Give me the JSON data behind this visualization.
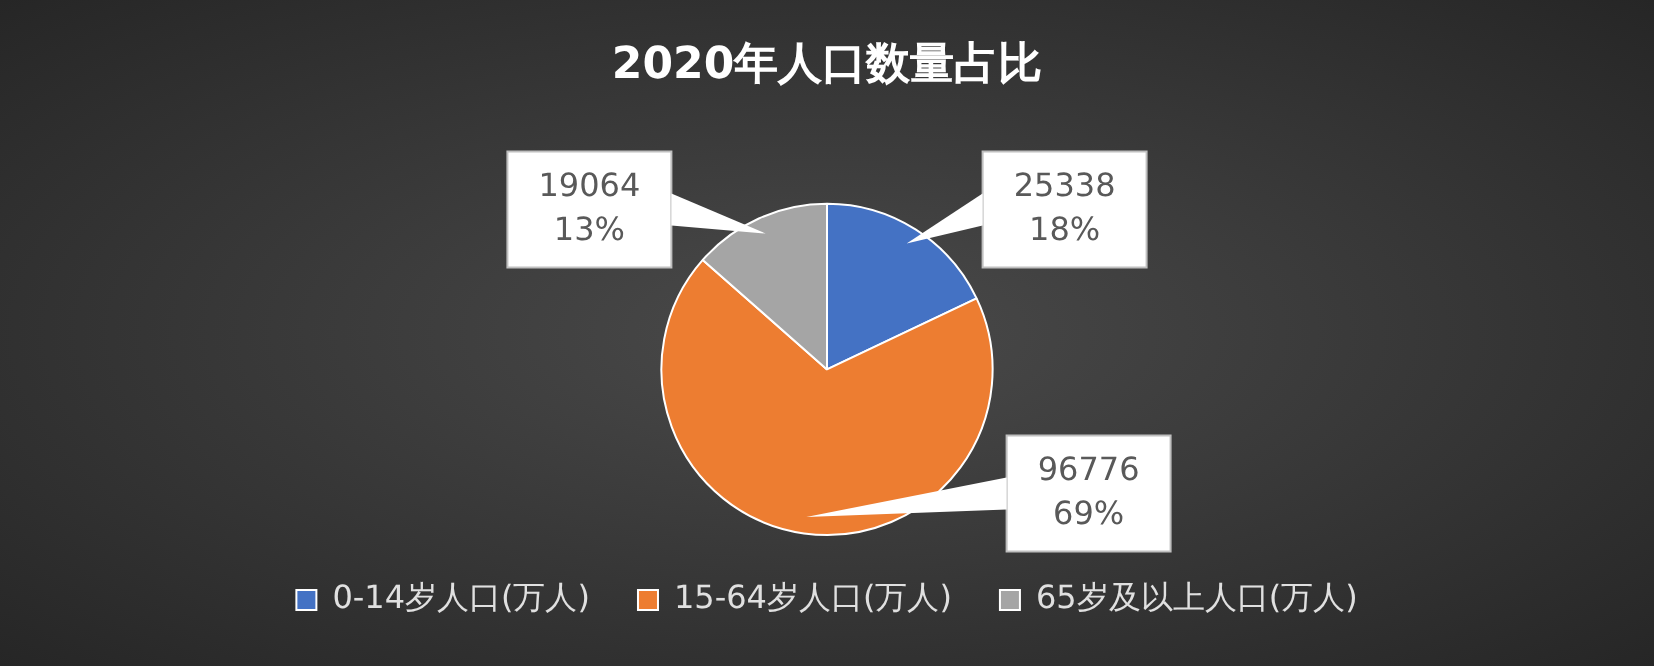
{
  "chart_data": {
    "type": "pie",
    "title": "2020年人口数量占比",
    "categories": [
      "0-14岁人口(万人)",
      "15-64岁人口(万人)",
      "65岁及以上人口(万人)"
    ],
    "values": [
      25338,
      96776,
      19064
    ],
    "colors": [
      "#4472c4",
      "#ed7d31",
      "#a5a5a5"
    ],
    "value_labels": [
      "25338\n18%",
      "96776\n69%",
      "19064\n13%"
    ],
    "legend": "bottom"
  }
}
